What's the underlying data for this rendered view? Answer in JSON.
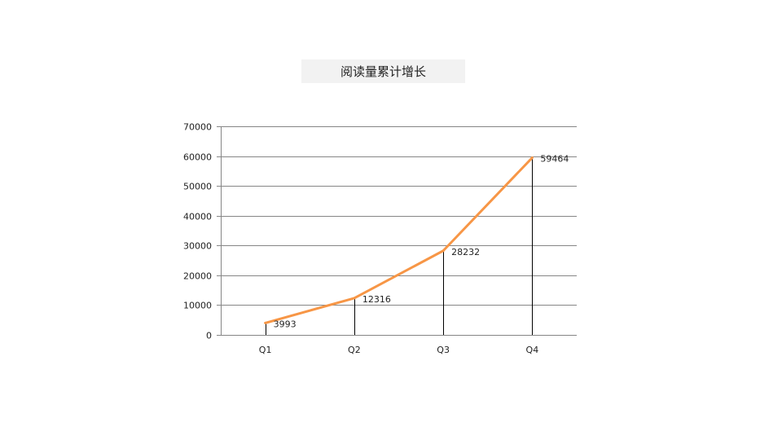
{
  "chart_data": {
    "type": "line",
    "title": "阅读量累计增长",
    "categories": [
      "Q1",
      "Q2",
      "Q3",
      "Q4"
    ],
    "series": [
      {
        "values": [
          3993,
          12316,
          28232,
          59464
        ],
        "color": "#f79646"
      }
    ],
    "data_labels": [
      "3993",
      "12316",
      "28232",
      "59464"
    ],
    "ylim": [
      0,
      70000
    ],
    "yticks": [
      0,
      10000,
      20000,
      30000,
      40000,
      50000,
      60000,
      70000
    ],
    "xlabel": "",
    "ylabel": "",
    "grid": true,
    "drop_lines": true,
    "legend": "none"
  }
}
